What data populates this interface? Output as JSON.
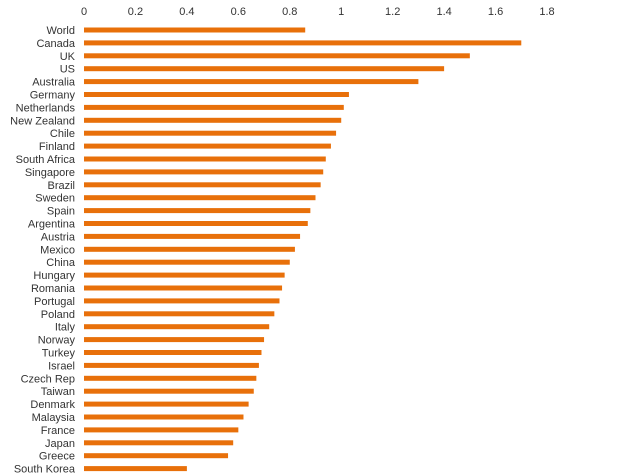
{
  "chart_data": {
    "type": "bar",
    "orientation": "horizontal",
    "title": "",
    "xlabel": "",
    "ylabel": "",
    "xlim": [
      0,
      1.8
    ],
    "x_ticks": [
      0,
      0.2,
      0.4,
      0.6,
      0.8,
      1,
      1.2,
      1.4,
      1.6,
      1.8
    ],
    "x_tick_labels": [
      "0",
      "0.2",
      "0.4",
      "0.6",
      "0.8",
      "1",
      "1.2",
      "1.4",
      "1.6",
      "1.8"
    ],
    "x_axis_position": "top",
    "grid": false,
    "legend": "none",
    "bar_color": "#E8700A",
    "categories": [
      "World",
      "Canada",
      "UK",
      "US",
      "Australia",
      "Germany",
      "Netherlands",
      "New Zealand",
      "Chile",
      "Finland",
      "South Africa",
      "Singapore",
      "Brazil",
      "Sweden",
      "Spain",
      "Argentina",
      "Austria",
      "Mexico",
      "China",
      "Hungary",
      "Romania",
      "Portugal",
      "Poland",
      "Italy",
      "Norway",
      "Turkey",
      "Israel",
      "Czech Rep",
      "Taiwan",
      "Denmark",
      "Malaysia",
      "France",
      "Japan",
      "Greece",
      "South Korea"
    ],
    "values": [
      0.86,
      1.7,
      1.5,
      1.4,
      1.3,
      1.03,
      1.01,
      1.0,
      0.98,
      0.96,
      0.94,
      0.93,
      0.92,
      0.9,
      0.88,
      0.87,
      0.84,
      0.82,
      0.8,
      0.78,
      0.77,
      0.76,
      0.74,
      0.72,
      0.7,
      0.69,
      0.68,
      0.67,
      0.66,
      0.64,
      0.62,
      0.6,
      0.58,
      0.56,
      0.4
    ]
  }
}
